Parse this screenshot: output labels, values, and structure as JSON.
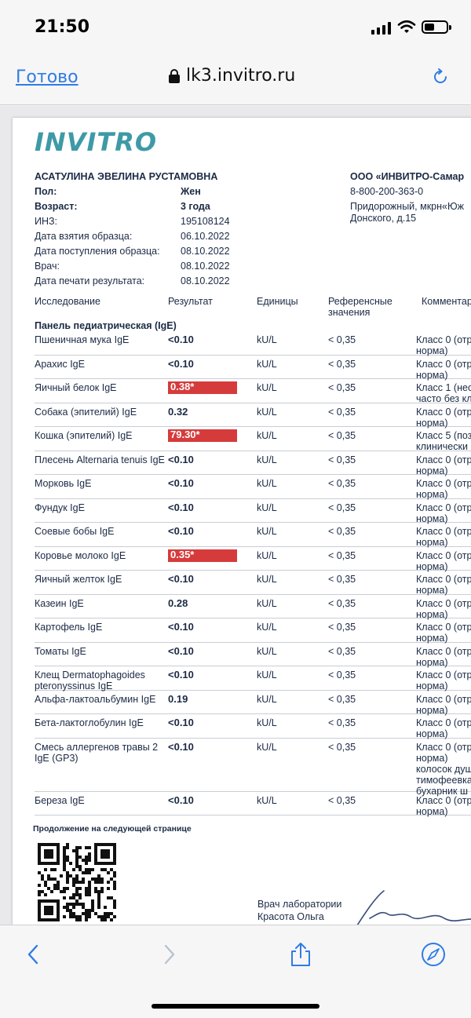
{
  "status": {
    "time": "21:50"
  },
  "nav": {
    "done_label": "Готово",
    "url": "lk3.invitro.ru"
  },
  "doc": {
    "logo": "INVITRO",
    "patient_name": "АСАТУЛИНА ЭВЕЛИНА РУСТАМОВНА",
    "info": [
      {
        "label": "Пол:",
        "value": "Жен",
        "bold": true
      },
      {
        "label": "Возраст:",
        "value": "3 года",
        "bold": true
      },
      {
        "label": "ИНЗ:",
        "value": "195108124",
        "bold": false
      },
      {
        "label": "Дата взятия образца:",
        "value": "06.10.2022",
        "bold": false
      },
      {
        "label": "Дата поступления образца:",
        "value": "08.10.2022",
        "bold": false
      },
      {
        "label": "Врач:",
        "value": "08.10.2022",
        "bold": false
      },
      {
        "label": "Дата печати результата:",
        "value": "08.10.2022",
        "bold": false
      }
    ],
    "org": {
      "name": "ООО «ИНВИТРО-Самар",
      "phone": "8-800-200-363-0",
      "address_1": "Придорожный, мкрн«Юж",
      "address_2": "Донского, д.15"
    },
    "columns": {
      "study": "Исследование",
      "result": "Результат",
      "units": "Единицы",
      "reference_1": "Референсные",
      "reference_2": "значения",
      "comment": "Комментар"
    },
    "panel_title": "Панель педиатрическая (IgE)",
    "rows": [
      {
        "name": "Пшеничная мука IgE",
        "result": "<0.10",
        "unit": "kU/L",
        "ref": "< 0,35",
        "comment": [
          "Класс 0 (отр",
          "норма)"
        ],
        "flag": false
      },
      {
        "name": "Арахис IgE",
        "result": "<0.10",
        "unit": "kU/L",
        "ref": "< 0,35",
        "comment": [
          "Класс 0 (отр",
          "норма)"
        ],
        "flag": false
      },
      {
        "name": "Яичный белок IgE",
        "result": "0.38*",
        "unit": "kU/L",
        "ref": "< 0,35",
        "comment": [
          "Класс 1 (нео",
          "часто без кл"
        ],
        "flag": true
      },
      {
        "name": "Собака (эпителий) IgE",
        "result": "0.32",
        "unit": "kU/L",
        "ref": "< 0,35",
        "comment": [
          "Класс 0 (отр",
          "норма)"
        ],
        "flag": false
      },
      {
        "name": "Кошка (эпителий) IgE",
        "result": "79.30*",
        "unit": "kU/L",
        "ref": "< 0,35",
        "comment": [
          "Класс 5 (поз",
          "клинически"
        ],
        "flag": true
      },
      {
        "name": "Плесень Alternaria tenuis IgE",
        "result": "<0.10",
        "unit": "kU/L",
        "ref": "< 0,35",
        "comment": [
          "Класс 0 (отр",
          "норма)"
        ],
        "flag": false
      },
      {
        "name": "Морковь IgE",
        "result": "<0.10",
        "unit": "kU/L",
        "ref": "< 0,35",
        "comment": [
          "Класс 0 (отр",
          "норма)"
        ],
        "flag": false
      },
      {
        "name": "Фундук IgE",
        "result": "<0.10",
        "unit": "kU/L",
        "ref": "< 0,35",
        "comment": [
          "Класс 0 (отр",
          "норма)"
        ],
        "flag": false
      },
      {
        "name": "Соевые бобы IgE",
        "result": "<0.10",
        "unit": "kU/L",
        "ref": "< 0,35",
        "comment": [
          "Класс 0 (отр",
          "норма)"
        ],
        "flag": false
      },
      {
        "name": "Коровье молоко IgE",
        "result": "0.35*",
        "unit": "kU/L",
        "ref": "< 0,35",
        "comment": [
          "Класс 0 (отр",
          "норма)"
        ],
        "flag": true
      },
      {
        "name": "Яичный желток  IgE",
        "result": "<0.10",
        "unit": "kU/L",
        "ref": "< 0,35",
        "comment": [
          "Класс 0 (отр",
          "норма)"
        ],
        "flag": false
      },
      {
        "name": "Казеин  IgE",
        "result": "0.28",
        "unit": "kU/L",
        "ref": "< 0,35",
        "comment": [
          "Класс 0 (отр",
          "норма)"
        ],
        "flag": false
      },
      {
        "name": "Картофель  IgE",
        "result": "<0.10",
        "unit": "kU/L",
        "ref": "< 0,35",
        "comment": [
          "Класс 0 (отр",
          "норма)"
        ],
        "flag": false
      },
      {
        "name": "Томаты  IgE",
        "result": "<0.10",
        "unit": "kU/L",
        "ref": "< 0,35",
        "comment": [
          "Класс 0 (отр",
          "норма)"
        ],
        "flag": false
      },
      {
        "name": "Клещ Dermatophagoides pteronyssinus IgE",
        "result": "<0.10",
        "unit": "kU/L",
        "ref": "< 0,35",
        "comment": [
          "Класс 0 (отр",
          "норма)"
        ],
        "flag": false
      },
      {
        "name": "Альфа-лактоальбумин  IgE",
        "result": "0.19",
        "unit": "kU/L",
        "ref": "< 0,35",
        "comment": [
          "Класс 0 (отр",
          "норма)"
        ],
        "flag": false
      },
      {
        "name": "Бета-лактоглобулин IgE",
        "result": "<0.10",
        "unit": "kU/L",
        "ref": "< 0,35",
        "comment": [
          "Класс 0 (отр",
          "норма)"
        ],
        "flag": false
      },
      {
        "name": "Смесь аллергенов травы 2 IgE (GP3)",
        "result": "<0.10",
        "unit": "kU/L",
        "ref": "< 0,35",
        "comment": [
          "Класс 0 (отр",
          "норма)",
          "колосок душ",
          "тимофеевка",
          "бухарник ш"
        ],
        "flag": false,
        "tall": true
      },
      {
        "name": "Береза IgE",
        "result": "<0.10",
        "unit": "kU/L",
        "ref": "< 0,35",
        "comment": [
          "Класс 0 (отр",
          "норма)"
        ],
        "flag": false
      }
    ],
    "continue_note": "Продолжение на следующей странице",
    "doctor_role": "Врач лаборатории",
    "doctor_name": "Красота Ольга"
  },
  "colors": {
    "accent": "#2f7be6",
    "logo": "#3e9aa6",
    "flag": "#d63b3b",
    "text": "#1b2a44"
  }
}
